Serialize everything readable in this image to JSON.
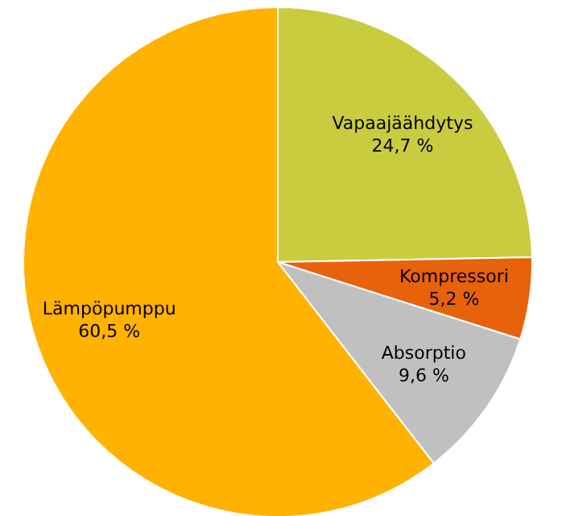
{
  "chart_data": {
    "type": "pie",
    "categories": [
      "Vapaajäähdytys",
      "Kompressori",
      "Absorptio",
      "Lämpöpumppu"
    ],
    "values": [
      24.7,
      5.2,
      9.6,
      60.5
    ],
    "value_labels": [
      "24,7 %",
      "5,2 %",
      "9,6 %",
      "60,5 %"
    ],
    "colors": [
      "#c9cc3f",
      "#e8620c",
      "#c0c0c0",
      "#ffb200"
    ]
  }
}
